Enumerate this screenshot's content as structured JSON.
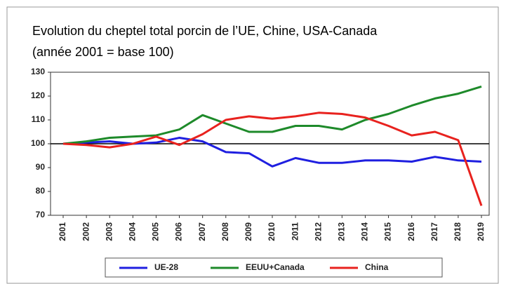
{
  "chart_data": {
    "type": "line",
    "title": "Evolution du cheptel total porcin de l’UE, Chine, USA-Canada",
    "subtitle": "(année 2001 = base 100)",
    "categories": [
      "2001",
      "2002",
      "2003",
      "2004",
      "2005",
      "2006",
      "2007",
      "2008",
      "2009",
      "2010",
      "2011",
      "2012",
      "2013",
      "2014",
      "2015",
      "2016",
      "2017",
      "2018",
      "2019"
    ],
    "series": [
      {
        "name": "UE-28",
        "color": "#1f1fe0",
        "values": [
          100,
          100.5,
          101,
          100,
          100.5,
          102.5,
          101,
          96.5,
          96,
          90.5,
          94,
          92,
          92,
          93,
          93,
          92.5,
          94.5,
          93,
          92.5
        ]
      },
      {
        "name": "EEUU+Canada",
        "color": "#1e8a2a",
        "values": [
          100,
          101,
          102.5,
          103,
          103.5,
          106,
          112,
          108.5,
          105,
          105,
          107.5,
          107.5,
          106,
          110,
          112.5,
          116,
          119,
          121,
          124
        ]
      },
      {
        "name": "China",
        "color": "#e8221e",
        "values": [
          100,
          99.5,
          98.5,
          100,
          103,
          99.5,
          104,
          110,
          111.5,
          110.5,
          111.5,
          113,
          112.5,
          111,
          107.5,
          103.5,
          105,
          101.5,
          74
        ]
      }
    ],
    "ylim": [
      70,
      130
    ],
    "yticks": [
      70,
      80,
      90,
      100,
      110,
      120,
      130
    ],
    "grid": false,
    "reference_line": 100,
    "legend": "bottom"
  }
}
